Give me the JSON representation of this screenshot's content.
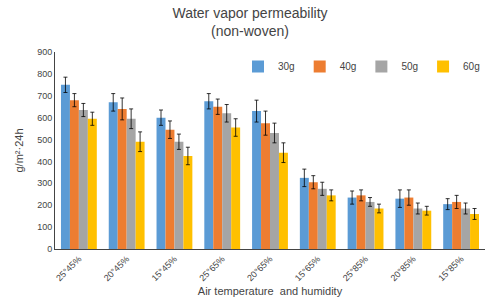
{
  "chart_data": {
    "type": "bar",
    "title": "Water vapor permeability\n(non-woven)",
    "xlabel": "Air temperature  and humidity",
    "ylabel": "g/m²·24h",
    "categories": [
      "25°45%",
      "20°45%",
      "15°45%",
      "25°65%",
      "20°65%",
      "15°65%",
      "25°85%",
      "20°85%",
      "15°85%"
    ],
    "series": [
      {
        "name": "30g",
        "color": "#5B9BD5",
        "values": [
          750,
          670,
          600,
          675,
          630,
          325,
          235,
          230,
          205
        ],
        "errors": [
          35,
          40,
          35,
          35,
          50,
          40,
          30,
          40,
          25
        ]
      },
      {
        "name": "40g",
        "color": "#ED7D31",
        "values": [
          680,
          640,
          545,
          650,
          575,
          305,
          245,
          235,
          215
        ],
        "errors": [
          30,
          50,
          40,
          35,
          55,
          30,
          25,
          35,
          30
        ]
      },
      {
        "name": "50g",
        "color": "#A5A5A5",
        "values": [
          635,
          595,
          490,
          620,
          530,
          275,
          215,
          185,
          185
        ],
        "errors": [
          30,
          45,
          35,
          40,
          45,
          30,
          20,
          25,
          25
        ]
      },
      {
        "name": "60g",
        "color": "#FFC000",
        "values": [
          595,
          490,
          425,
          555,
          440,
          245,
          185,
          175,
          160
        ],
        "errors": [
          30,
          45,
          40,
          40,
          45,
          25,
          20,
          20,
          25
        ]
      }
    ],
    "ylim": [
      0,
      900
    ],
    "yticks": [
      0,
      100,
      200,
      300,
      400,
      500,
      600,
      700,
      800,
      900
    ],
    "grid": false,
    "legend": "upper right"
  }
}
